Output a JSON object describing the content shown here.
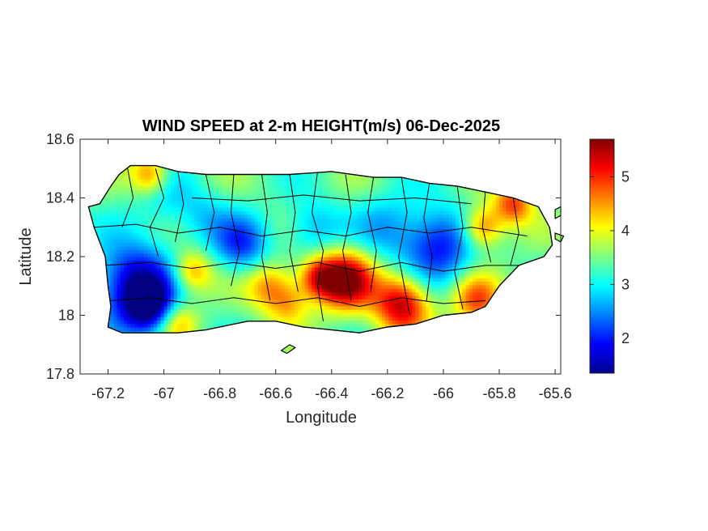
{
  "chart_data": {
    "type": "heatmap",
    "title": "WIND SPEED at 2-m HEIGHT(m/s) 06-Dec-2025",
    "xlabel": "Longitude",
    "ylabel": "Latitude",
    "xlim": [
      -67.3,
      -65.58
    ],
    "ylim": [
      17.8,
      18.6
    ],
    "xticks": [
      -67.2,
      -67,
      -66.8,
      -66.6,
      -66.4,
      -66.2,
      -66,
      -65.8,
      -65.6
    ],
    "yticks": [
      17.8,
      18,
      18.2,
      18.4,
      18.6
    ],
    "xtick_labels": [
      "-67.2",
      "-67",
      "-66.8",
      "-66.6",
      "-66.4",
      "-66.2",
      "-66",
      "-65.8",
      "-65.6"
    ],
    "ytick_labels": [
      "17.8",
      "18",
      "18.2",
      "18.4",
      "18.6"
    ],
    "colorbar": {
      "colormap": "jet",
      "range": [
        1.35,
        5.7
      ],
      "ticks": [
        2,
        3,
        4,
        5
      ],
      "tick_labels": [
        "2",
        "3",
        "4",
        "5"
      ]
    },
    "coastline": [
      [
        -67.27,
        18.37
      ],
      [
        -67.23,
        18.38
      ],
      [
        -67.19,
        18.44
      ],
      [
        -67.16,
        18.48
      ],
      [
        -67.12,
        18.51
      ],
      [
        -67.03,
        18.51
      ],
      [
        -66.95,
        18.49
      ],
      [
        -66.85,
        18.48
      ],
      [
        -66.7,
        18.48
      ],
      [
        -66.55,
        18.48
      ],
      [
        -66.4,
        18.49
      ],
      [
        -66.25,
        18.47
      ],
      [
        -66.15,
        18.47
      ],
      [
        -66.05,
        18.45
      ],
      [
        -65.95,
        18.44
      ],
      [
        -65.85,
        18.42
      ],
      [
        -65.75,
        18.4
      ],
      [
        -65.66,
        18.37
      ],
      [
        -65.62,
        18.3
      ],
      [
        -65.61,
        18.24
      ],
      [
        -65.64,
        18.2
      ],
      [
        -65.73,
        18.17
      ],
      [
        -65.8,
        18.1
      ],
      [
        -65.85,
        18.03
      ],
      [
        -65.9,
        18.01
      ],
      [
        -66.0,
        18.0
      ],
      [
        -66.1,
        17.97
      ],
      [
        -66.2,
        17.96
      ],
      [
        -66.3,
        17.94
      ],
      [
        -66.4,
        17.95
      ],
      [
        -66.5,
        17.96
      ],
      [
        -66.6,
        17.98
      ],
      [
        -66.7,
        17.98
      ],
      [
        -66.85,
        17.95
      ],
      [
        -66.95,
        17.94
      ],
      [
        -67.05,
        17.94
      ],
      [
        -67.15,
        17.94
      ],
      [
        -67.2,
        17.96
      ],
      [
        -67.19,
        18.03
      ],
      [
        -67.2,
        18.1
      ],
      [
        -67.21,
        18.2
      ],
      [
        -67.25,
        18.3
      ]
    ],
    "islands": [
      [
        [
          -66.58,
          17.88
        ],
        [
          -66.55,
          17.9
        ],
        [
          -66.53,
          17.89
        ],
        [
          -66.56,
          17.87
        ]
      ],
      [
        [
          -65.6,
          18.36
        ],
        [
          -65.58,
          18.37
        ],
        [
          -65.58,
          18.34
        ],
        [
          -65.6,
          18.33
        ]
      ],
      [
        [
          -65.6,
          18.28
        ],
        [
          -65.57,
          18.27
        ],
        [
          -65.58,
          18.25
        ],
        [
          -65.6,
          18.26
        ]
      ]
    ],
    "wind_field": {
      "base": 3.4,
      "features": [
        {
          "lon": -67.1,
          "lat": 18.1,
          "value": 1.4,
          "radius": 0.1
        },
        {
          "lon": -67.05,
          "lat": 18.02,
          "value": 2.1,
          "radius": 0.06
        },
        {
          "lon": -66.02,
          "lat": 18.24,
          "value": 1.9,
          "radius": 0.09
        },
        {
          "lon": -66.72,
          "lat": 18.24,
          "value": 2.2,
          "radius": 0.07
        },
        {
          "lon": -66.47,
          "lat": 18.3,
          "value": 2.6,
          "radius": 0.07
        },
        {
          "lon": -66.2,
          "lat": 18.3,
          "value": 2.7,
          "radius": 0.08
        },
        {
          "lon": -66.86,
          "lat": 18.34,
          "value": 2.9,
          "radius": 0.07
        },
        {
          "lon": -67.0,
          "lat": 18.4,
          "value": 2.9,
          "radius": 0.08
        },
        {
          "lon": -66.35,
          "lat": 18.12,
          "value": 5.7,
          "radius": 0.07
        },
        {
          "lon": -66.15,
          "lat": 18.04,
          "value": 5.5,
          "radius": 0.07
        },
        {
          "lon": -66.45,
          "lat": 18.13,
          "value": 4.9,
          "radius": 0.05
        },
        {
          "lon": -65.86,
          "lat": 18.3,
          "value": 4.9,
          "radius": 0.05
        },
        {
          "lon": -65.88,
          "lat": 18.05,
          "value": 4.8,
          "radius": 0.06
        },
        {
          "lon": -65.75,
          "lat": 18.38,
          "value": 4.9,
          "radius": 0.05
        },
        {
          "lon": -67.05,
          "lat": 18.48,
          "value": 4.8,
          "radius": 0.05
        },
        {
          "lon": -66.9,
          "lat": 18.15,
          "value": 4.6,
          "radius": 0.05
        },
        {
          "lon": -66.62,
          "lat": 18.1,
          "value": 4.6,
          "radius": 0.06
        },
        {
          "lon": -66.55,
          "lat": 18.04,
          "value": 4.2,
          "radius": 0.05
        },
        {
          "lon": -66.95,
          "lat": 17.98,
          "value": 4.4,
          "radius": 0.05
        }
      ]
    },
    "municipal_boundaries": [
      [
        [
          -67.13,
          18.5
        ],
        [
          -67.11,
          18.4
        ],
        [
          -67.15,
          18.3
        ]
      ],
      [
        [
          -67.03,
          18.5
        ],
        [
          -67.0,
          18.4
        ],
        [
          -67.05,
          18.3
        ],
        [
          -67.02,
          18.2
        ]
      ],
      [
        [
          -66.95,
          18.49
        ],
        [
          -66.93,
          18.38
        ],
        [
          -66.96,
          18.25
        ]
      ],
      [
        [
          -66.85,
          18.48
        ],
        [
          -66.82,
          18.35
        ],
        [
          -66.85,
          18.22
        ]
      ],
      [
        [
          -66.75,
          18.48
        ],
        [
          -66.76,
          18.35
        ],
        [
          -66.73,
          18.22
        ],
        [
          -66.76,
          18.1
        ]
      ],
      [
        [
          -66.65,
          18.48
        ],
        [
          -66.63,
          18.35
        ],
        [
          -66.65,
          18.2
        ],
        [
          -66.62,
          18.05
        ]
      ],
      [
        [
          -66.55,
          18.48
        ],
        [
          -66.53,
          18.35
        ],
        [
          -66.55,
          18.22
        ],
        [
          -66.52,
          18.08
        ]
      ],
      [
        [
          -66.45,
          18.49
        ],
        [
          -66.47,
          18.35
        ],
        [
          -66.43,
          18.22
        ],
        [
          -66.45,
          18.1
        ],
        [
          -66.43,
          17.98
        ]
      ],
      [
        [
          -66.35,
          18.48
        ],
        [
          -66.33,
          18.35
        ],
        [
          -66.36,
          18.22
        ],
        [
          -66.33,
          18.05
        ]
      ],
      [
        [
          -66.25,
          18.47
        ],
        [
          -66.27,
          18.35
        ],
        [
          -66.24,
          18.22
        ],
        [
          -66.26,
          18.08
        ]
      ],
      [
        [
          -66.15,
          18.47
        ],
        [
          -66.13,
          18.35
        ],
        [
          -66.16,
          18.2
        ],
        [
          -66.12,
          18.0
        ]
      ],
      [
        [
          -66.05,
          18.45
        ],
        [
          -66.07,
          18.33
        ],
        [
          -66.04,
          18.2
        ],
        [
          -66.06,
          18.05
        ]
      ],
      [
        [
          -65.95,
          18.44
        ],
        [
          -65.93,
          18.3
        ],
        [
          -65.96,
          18.15
        ],
        [
          -65.93,
          18.02
        ]
      ],
      [
        [
          -65.85,
          18.42
        ],
        [
          -65.86,
          18.3
        ],
        [
          -65.83,
          18.18
        ]
      ],
      [
        [
          -65.75,
          18.4
        ],
        [
          -65.73,
          18.28
        ],
        [
          -65.76,
          18.17
        ]
      ],
      [
        [
          -67.25,
          18.3
        ],
        [
          -67.1,
          18.31
        ],
        [
          -66.95,
          18.28
        ],
        [
          -66.8,
          18.3
        ],
        [
          -66.65,
          18.27
        ],
        [
          -66.5,
          18.29
        ],
        [
          -66.35,
          18.27
        ],
        [
          -66.2,
          18.3
        ],
        [
          -66.05,
          18.28
        ],
        [
          -65.9,
          18.3
        ],
        [
          -65.7,
          18.27
        ]
      ],
      [
        [
          -67.21,
          18.17
        ],
        [
          -67.05,
          18.18
        ],
        [
          -66.9,
          18.16
        ],
        [
          -66.75,
          18.18
        ],
        [
          -66.6,
          18.16
        ],
        [
          -66.45,
          18.18
        ],
        [
          -66.3,
          18.15
        ],
        [
          -66.15,
          18.18
        ],
        [
          -66.0,
          18.15
        ],
        [
          -65.85,
          18.17
        ],
        [
          -65.73,
          18.17
        ]
      ],
      [
        [
          -67.19,
          18.05
        ],
        [
          -67.05,
          18.06
        ],
        [
          -66.9,
          18.04
        ],
        [
          -66.75,
          18.06
        ],
        [
          -66.6,
          18.04
        ],
        [
          -66.45,
          18.06
        ],
        [
          -66.3,
          18.03
        ],
        [
          -66.15,
          18.06
        ],
        [
          -66.0,
          18.04
        ],
        [
          -65.85,
          18.05
        ]
      ],
      [
        [
          -66.9,
          18.4
        ],
        [
          -66.7,
          18.39
        ],
        [
          -66.5,
          18.41
        ],
        [
          -66.3,
          18.39
        ],
        [
          -66.1,
          18.4
        ],
        [
          -65.9,
          18.38
        ]
      ]
    ]
  }
}
